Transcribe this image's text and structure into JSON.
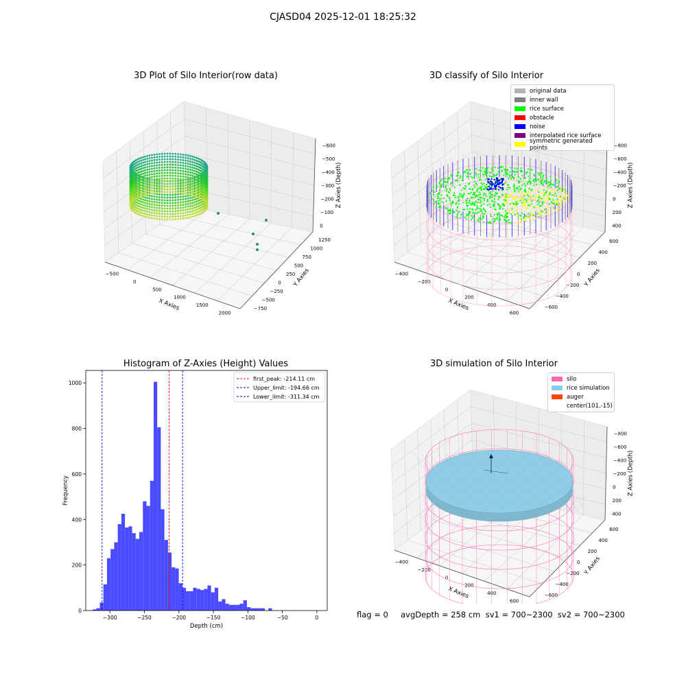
{
  "figure": {
    "title": "CJASD04 2025-12-01 18:25:32",
    "status_text": "flag = 0     avgDepth = 258 cm  sv1 = 700~2300  sv2 = 700~2300"
  },
  "panels": {
    "raw": {
      "title": "3D Plot of Silo Interior(row data)",
      "xlabel": "X Axies",
      "ylabel": "Y Axies",
      "zlabel": "Z Axies (Depth)",
      "xticks": [
        "−500",
        "0",
        "500",
        "1000",
        "1500",
        "2000"
      ],
      "yticks": [
        "−750",
        "−500",
        "−250",
        "0",
        "250",
        "500",
        "750",
        "1000",
        "1250"
      ],
      "zticks": [
        "0",
        "−100",
        "−200",
        "−300",
        "−400",
        "−500",
        "−600"
      ]
    },
    "classify": {
      "title": "3D classify of Silo Interior",
      "xlabel": "X Axies",
      "ylabel": "Y Axies",
      "zlabel": "Z Axies (Depth)",
      "xticks": [
        "−400",
        "−200",
        "0",
        "200",
        "400",
        "600"
      ],
      "yticks": [
        "−600",
        "−400",
        "−200",
        "0",
        "200",
        "400",
        "600"
      ],
      "zticks": [
        "400",
        "200",
        "0",
        "−200",
        "−400",
        "−600",
        "−800"
      ],
      "legend": [
        {
          "label": "original data",
          "color": "#b3b3b3"
        },
        {
          "label": "inner wall",
          "color": "#808080"
        },
        {
          "label": "rice surface",
          "color": "#00ff00"
        },
        {
          "label": "obstacle",
          "color": "#ff0000"
        },
        {
          "label": "noise",
          "color": "#0000ff"
        },
        {
          "label": "interpolated rice surface",
          "color": "#800080"
        },
        {
          "label": "symmetric generated points",
          "color": "#ffff00"
        }
      ]
    },
    "simulation": {
      "title": "3D simulation of Silo Interior",
      "xlabel": "X Axies",
      "ylabel": "Y Axies",
      "zlabel": "Z Axies (Depth)",
      "xticks": [
        "−400",
        "−200",
        "0",
        "200",
        "400",
        "600"
      ],
      "yticks": [
        "−600",
        "−400",
        "−200",
        "0",
        "200",
        "400",
        "600"
      ],
      "zticks": [
        "400",
        "200",
        "0",
        "−200",
        "−400",
        "−600",
        "−800"
      ],
      "legend": [
        {
          "label": "silo",
          "color": "#ff69b4"
        },
        {
          "label": "rice simulation",
          "color": "#87ceeb"
        },
        {
          "label": "auger",
          "color": "#ff4500"
        },
        {
          "label": "center(101,-15)",
          "color": ""
        }
      ]
    }
  },
  "chart_data": {
    "type": "bar",
    "title": "Histogram of Z-Axies (Height) Values",
    "xlabel": "Depth (cm)",
    "ylabel": "Frequency",
    "xlim": [
      -335,
      15
    ],
    "ylim": [
      0,
      1055
    ],
    "xticks": [
      -300,
      -250,
      -200,
      -150,
      -100,
      -50,
      0
    ],
    "yticks": [
      0,
      200,
      400,
      600,
      800,
      1000
    ],
    "bin_edges_start": -325,
    "bin_width": 5.2,
    "values": [
      5,
      10,
      35,
      115,
      230,
      270,
      300,
      380,
      425,
      365,
      370,
      340,
      315,
      345,
      480,
      460,
      570,
      1005,
      805,
      445,
      310,
      255,
      190,
      185,
      120,
      100,
      85,
      85,
      100,
      95,
      90,
      95,
      110,
      80,
      100,
      40,
      50,
      30,
      25,
      25,
      25,
      30,
      45,
      15,
      10,
      10,
      10,
      10,
      0,
      10
    ],
    "bar_color": "#4b4bff",
    "vlines": [
      {
        "label": "first_peak: -214.11 cm",
        "x": -214.11,
        "color": "#ff0000"
      },
      {
        "label": "Upper_limit: -194.66 cm",
        "x": -194.66,
        "color": "#0000ff"
      },
      {
        "label": "Lower_limit: -311.34 cm",
        "x": -311.34,
        "color": "#0000ff"
      }
    ],
    "legend_position": "top-right"
  }
}
